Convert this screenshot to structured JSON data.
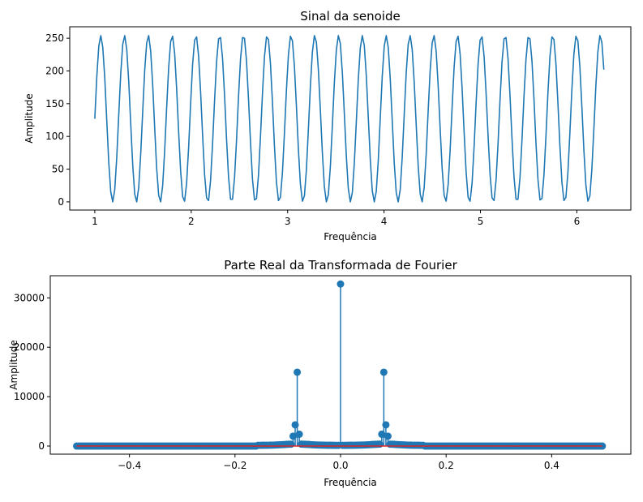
{
  "chart_data": [
    {
      "type": "line",
      "title": "Sinal da senoide",
      "xlabel": "Frequência",
      "ylabel": "Amplitude",
      "xlim": [
        0.74,
        6.56
      ],
      "ylim": [
        -12.5,
        267.5
      ],
      "xticks": [
        1,
        2,
        3,
        4,
        5,
        6
      ],
      "yticks": [
        0,
        50,
        100,
        150,
        200,
        250
      ],
      "grid": false,
      "signal": {
        "x_start": 1.0,
        "x_end": 6.28,
        "samples": 256,
        "offset": 127.5,
        "amplitude": 127.5,
        "cycles": 21.4,
        "quantize": "floor",
        "color": "#1f77b4"
      }
    },
    {
      "type": "stem",
      "title": "Parte Real da Transformada de Fourier",
      "xlabel": "Frequência",
      "ylabel": "Amplitude",
      "xlim": [
        -0.55,
        0.55
      ],
      "ylim": [
        -1640,
        34480
      ],
      "xticks": [
        -0.4,
        -0.2,
        0.0,
        0.2,
        0.4
      ],
      "xtick_labels": [
        "−0.4",
        "−0.2",
        "0.0",
        "0.2",
        "0.4"
      ],
      "yticks": [
        0,
        10000,
        20000,
        30000
      ],
      "grid": false,
      "n_points": 256,
      "x_range": [
        -0.5,
        0.496
      ],
      "baseline": 0,
      "baseline_color": "#d62728",
      "stem_color": "#1f77b4",
      "peaks": [
        {
          "x": 0.0,
          "y": 32800
        },
        {
          "x": -0.0835,
          "y": 14950
        },
        {
          "x": 0.0835,
          "y": 14950
        },
        {
          "x": -0.0875,
          "y": 4300
        },
        {
          "x": 0.0875,
          "y": 4300
        },
        {
          "x": -0.0795,
          "y": 2400
        },
        {
          "x": 0.0795,
          "y": 2400
        },
        {
          "x": -0.0915,
          "y": 2000
        },
        {
          "x": 0.0915,
          "y": 2000
        }
      ]
    }
  ]
}
